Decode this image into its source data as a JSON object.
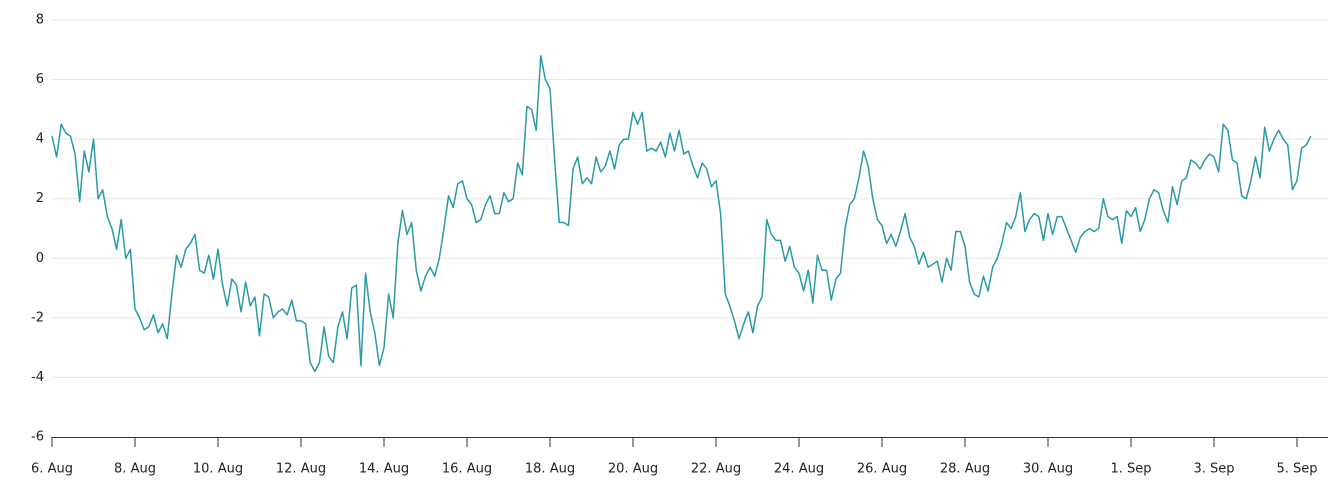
{
  "chart_data": {
    "type": "line",
    "color": "#2a9aa5",
    "ylim": [
      -6,
      8
    ],
    "yticks": [
      -6,
      -4,
      -2,
      0,
      2,
      4,
      6,
      8
    ],
    "grid": true,
    "categories": [
      "6. Aug",
      null,
      null,
      null,
      null,
      null,
      null,
      null,
      null,
      null,
      null,
      null,
      null,
      null,
      null,
      null,
      null,
      null,
      "8. Aug",
      null,
      null,
      null,
      null,
      null,
      null,
      null,
      null,
      null,
      null,
      null,
      null,
      null,
      null,
      null,
      null,
      null,
      "10. Aug",
      null,
      null,
      null,
      null,
      null,
      null,
      null,
      null,
      null,
      null,
      null,
      null,
      null,
      null,
      null,
      null,
      null,
      "12. Aug",
      null,
      null,
      null,
      null,
      null,
      null,
      null,
      null,
      null,
      null,
      null,
      null,
      null,
      null,
      null,
      null,
      null,
      "14. Aug",
      null,
      null,
      null,
      null,
      null,
      null,
      null,
      null,
      null,
      null,
      null,
      null,
      null,
      null,
      null,
      null,
      null,
      "16. Aug",
      null,
      null,
      null,
      null,
      null,
      null,
      null,
      null,
      null,
      null,
      null,
      null,
      null,
      null,
      null,
      null,
      null,
      "18. Aug",
      null,
      null,
      null,
      null,
      null,
      null,
      null,
      null,
      null,
      null,
      null,
      null,
      null,
      null,
      null,
      null,
      null,
      "20. Aug",
      null,
      null,
      null,
      null,
      null,
      null,
      null,
      null,
      null,
      null,
      null,
      null,
      null,
      null,
      null,
      null,
      null,
      "22. Aug",
      null,
      null,
      null,
      null,
      null,
      null,
      null,
      null,
      null,
      null,
      null,
      null,
      null,
      null,
      null,
      null,
      null,
      "24. Aug",
      null,
      null,
      null,
      null,
      null,
      null,
      null,
      null,
      null,
      null,
      null,
      null,
      null,
      null,
      null,
      null,
      null,
      "26. Aug",
      null,
      null,
      null,
      null,
      null,
      null,
      null,
      null,
      null,
      null,
      null,
      null,
      null,
      null,
      null,
      null,
      null,
      "28. Aug",
      null,
      null,
      null,
      null,
      null,
      null,
      null,
      null,
      null,
      null,
      null,
      null,
      null,
      null,
      null,
      null,
      null,
      "30. Aug",
      null,
      null,
      null,
      null,
      null,
      null,
      null,
      null,
      null,
      null,
      null,
      null,
      null,
      null,
      null,
      null,
      null,
      "1. Sep",
      null,
      null,
      null,
      null,
      null,
      null,
      null,
      null,
      null,
      null,
      null,
      null,
      null,
      null,
      null,
      null,
      null,
      "3. Sep",
      null,
      null,
      null,
      null,
      null,
      null,
      null,
      null,
      null,
      null,
      null,
      null,
      null,
      null,
      null,
      null,
      null,
      "5. Sep",
      null,
      null,
      null
    ],
    "values": [
      4.1,
      3.4,
      4.5,
      4.2,
      4.1,
      3.5,
      1.9,
      3.6,
      2.9,
      4.0,
      2.0,
      2.3,
      1.4,
      1.0,
      0.3,
      1.3,
      0.0,
      0.3,
      -1.7,
      -2.0,
      -2.4,
      -2.3,
      -1.9,
      -2.5,
      -2.2,
      -2.7,
      -1.2,
      0.1,
      -0.3,
      0.3,
      0.5,
      0.8,
      -0.4,
      -0.5,
      0.1,
      -0.7,
      0.3,
      -0.9,
      -1.6,
      -0.7,
      -0.9,
      -1.8,
      -0.8,
      -1.6,
      -1.3,
      -2.6,
      -1.2,
      -1.3,
      -2.0,
      -1.8,
      -1.7,
      -1.9,
      -1.4,
      -2.1,
      -2.1,
      -2.2,
      -3.5,
      -3.8,
      -3.5,
      -2.3,
      -3.3,
      -3.5,
      -2.3,
      -1.8,
      -2.7,
      -1.0,
      -0.9,
      -3.6,
      -0.5,
      -1.8,
      -2.5,
      -3.6,
      -3.0,
      -1.2,
      -2.0,
      0.5,
      1.6,
      0.8,
      1.2,
      -0.4,
      -1.1,
      -0.6,
      -0.3,
      -0.6,
      0.0,
      1.0,
      2.1,
      1.7,
      2.5,
      2.6,
      2.0,
      1.8,
      1.2,
      1.3,
      1.8,
      2.1,
      1.5,
      1.5,
      2.2,
      1.9,
      2.0,
      3.2,
      2.8,
      5.1,
      5.0,
      4.3,
      6.8,
      6.0,
      5.7,
      3.3,
      1.2,
      1.2,
      1.1,
      3.0,
      3.4,
      2.5,
      2.7,
      2.5,
      3.4,
      2.9,
      3.1,
      3.6,
      3.0,
      3.8,
      4.0,
      4.0,
      4.9,
      4.5,
      4.9,
      3.6,
      3.7,
      3.6,
      3.9,
      3.4,
      4.2,
      3.6,
      4.3,
      3.5,
      3.6,
      3.1,
      2.7,
      3.2,
      3.0,
      2.4,
      2.6,
      1.5,
      -1.2,
      -1.6,
      -2.1,
      -2.7,
      -2.2,
      -1.8,
      -2.5,
      -1.6,
      -1.3,
      1.3,
      0.8,
      0.6,
      0.6,
      -0.1,
      0.4,
      -0.3,
      -0.5,
      -1.1,
      -0.4,
      -1.5,
      0.1,
      -0.4,
      -0.4,
      -1.4,
      -0.7,
      -0.5,
      1.0,
      1.8,
      2.0,
      2.7,
      3.6,
      3.1,
      2.0,
      1.3,
      1.1,
      0.5,
      0.8,
      0.4,
      0.9,
      1.5,
      0.7,
      0.4,
      -0.2,
      0.2,
      -0.3,
      -0.2,
      -0.1,
      -0.8,
      0.0,
      -0.4,
      0.9,
      0.9,
      0.4,
      -0.8,
      -1.2,
      -1.3,
      -0.6,
      -1.1,
      -0.3,
      0.0,
      0.5,
      1.2,
      1.0,
      1.4,
      2.2,
      0.9,
      1.3,
      1.5,
      1.4,
      0.6,
      1.5,
      0.8,
      1.4,
      1.4,
      1.0,
      0.6,
      0.2,
      0.7,
      0.9,
      1.0,
      0.9,
      1.0,
      2.0,
      1.4,
      1.3,
      1.4,
      0.5,
      1.6,
      1.4,
      1.7,
      0.9,
      1.3,
      2.0,
      2.3,
      2.2,
      1.6,
      1.2,
      2.4,
      1.8,
      2.6,
      2.7,
      3.3,
      3.2,
      3.0,
      3.3,
      3.5,
      3.4,
      2.9,
      4.5,
      4.3,
      3.3,
      3.2,
      2.1,
      2.0,
      2.6,
      3.4,
      2.7,
      4.4,
      3.6,
      4.0,
      4.3,
      4.0,
      3.8,
      2.3,
      2.6,
      3.7,
      3.8,
      4.1
    ]
  }
}
